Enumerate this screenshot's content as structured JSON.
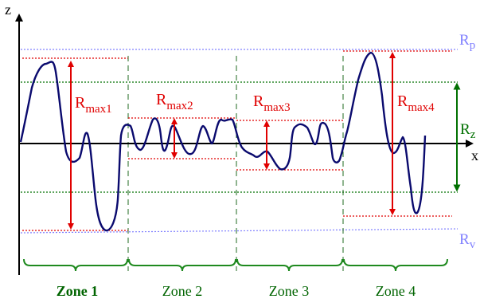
{
  "axes": {
    "z_label": "z",
    "x_label": "x"
  },
  "levels": {
    "rp": {
      "main": "R",
      "sub": "p",
      "color": "#8080ff"
    },
    "rv": {
      "main": "R",
      "sub": "v",
      "color": "#8080ff"
    },
    "rz": {
      "main": "R",
      "sub": "z",
      "color": "#007000"
    }
  },
  "zones": [
    {
      "label": "Zone 1",
      "rmax": {
        "main": "R",
        "sub": "max1"
      }
    },
    {
      "label": "Zone 2",
      "rmax": {
        "main": "R",
        "sub": "max2"
      }
    },
    {
      "label": "Zone 3",
      "rmax": {
        "main": "R",
        "sub": "max3"
      }
    },
    {
      "label": "Zone 4",
      "rmax": {
        "main": "R",
        "sub": "max4"
      }
    }
  ],
  "colors": {
    "profile": "#0a0a6e",
    "rmax": "#e00000",
    "peak_valley_line": "#8080ff",
    "rz_line": "#007000",
    "zone_divider": "#1f6a1f",
    "axis": "#000000"
  }
}
